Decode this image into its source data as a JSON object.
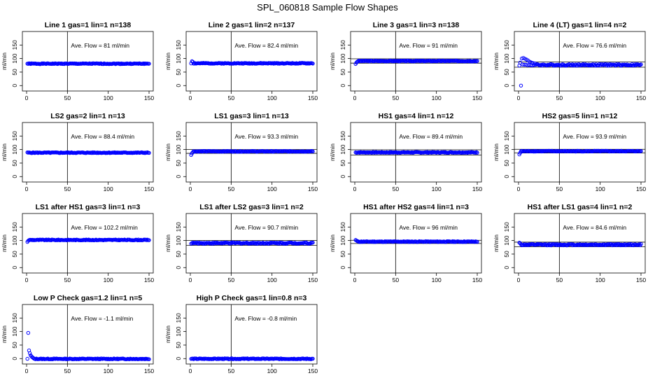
{
  "figure": {
    "title": "SPL_060818  Sample Flow Shapes",
    "series_color": "#0000ff"
  },
  "chart_data": [
    {
      "type": "scatter",
      "title": "Line 1 gas=1 lin=1 n=138",
      "ylabel": "ml/min",
      "xlim": [
        0,
        150
      ],
      "ylim": [
        -20,
        200
      ],
      "xticks": [
        0,
        50,
        100,
        150
      ],
      "yticks": [
        0,
        50,
        100,
        150
      ],
      "vline_x": 50,
      "annotation": "Ave. Flow =  81  ml/min",
      "mean": 81,
      "band": [],
      "startup": [],
      "noise": 1.5,
      "seed": 1
    },
    {
      "type": "scatter",
      "title": "Line 2 gas=1 lin=2 n=137",
      "ylabel": "ml/min",
      "xlim": [
        0,
        150
      ],
      "ylim": [
        -20,
        200
      ],
      "xticks": [
        0,
        50,
        100,
        150
      ],
      "yticks": [
        0,
        50,
        100,
        150
      ],
      "vline_x": 50,
      "annotation": "Ave. Flow =  82.4  ml/min",
      "mean": 82.4,
      "band": [],
      "startup": [
        [
          2,
          90
        ],
        [
          3,
          88
        ]
      ],
      "noise": 1.5,
      "seed": 2
    },
    {
      "type": "scatter",
      "title": "Line 3 gas=1 lin=3 n=138",
      "ylabel": "ml/min",
      "xlim": [
        0,
        150
      ],
      "ylim": [
        -20,
        200
      ],
      "xticks": [
        0,
        50,
        100,
        150
      ],
      "yticks": [
        0,
        50,
        100,
        150
      ],
      "vline_x": 50,
      "annotation": "Ave. Flow =  91  ml/min",
      "mean": 91,
      "band": [
        83,
        99
      ],
      "startup": [
        [
          1,
          80
        ],
        [
          2,
          85
        ],
        [
          3,
          88
        ]
      ],
      "noise": 1.5,
      "seed": 3
    },
    {
      "type": "scatter",
      "title": "Line 4 (LT) gas=1 lin=4 n=2",
      "ylabel": "ml/min",
      "xlim": [
        0,
        150
      ],
      "ylim": [
        -20,
        200
      ],
      "xticks": [
        0,
        50,
        100,
        150
      ],
      "yticks": [
        0,
        50,
        100,
        150
      ],
      "vline_x": 50,
      "annotation": "Ave. Flow =  76.6  ml/min",
      "mean": 76.6,
      "band": [
        68,
        87
      ],
      "startup": [
        [
          3,
          0
        ],
        [
          2,
          85
        ],
        [
          4,
          100
        ],
        [
          6,
          102
        ],
        [
          8,
          99
        ],
        [
          10,
          96
        ],
        [
          12,
          92
        ],
        [
          14,
          88
        ],
        [
          16,
          85
        ],
        [
          18,
          83
        ],
        [
          20,
          82
        ]
      ],
      "noise": 3,
      "seed": 4
    },
    {
      "type": "scatter",
      "title": "LS2 gas=2 lin=1 n=13",
      "ylabel": "ml/min",
      "xlim": [
        0,
        150
      ],
      "ylim": [
        -20,
        200
      ],
      "xticks": [
        0,
        50,
        100,
        150
      ],
      "yticks": [
        0,
        50,
        100,
        150
      ],
      "vline_x": 50,
      "annotation": "Ave. Flow =  88.4  ml/min",
      "mean": 88.4,
      "band": [],
      "startup": [],
      "noise": 1.5,
      "seed": 5
    },
    {
      "type": "scatter",
      "title": "LS1 gas=3 lin=1 n=13",
      "ylabel": "ml/min",
      "xlim": [
        0,
        150
      ],
      "ylim": [
        -20,
        200
      ],
      "xticks": [
        0,
        50,
        100,
        150
      ],
      "yticks": [
        0,
        50,
        100,
        150
      ],
      "vline_x": 50,
      "annotation": "Ave. Flow =  93.3  ml/min",
      "mean": 93.3,
      "band": [
        86,
        100
      ],
      "startup": [
        [
          1,
          80
        ],
        [
          2,
          86
        ],
        [
          3,
          90
        ]
      ],
      "noise": 1.5,
      "seed": 6
    },
    {
      "type": "scatter",
      "title": "HS1 gas=4 lin=1 n=12",
      "ylabel": "ml/min",
      "xlim": [
        0,
        150
      ],
      "ylim": [
        -20,
        200
      ],
      "xticks": [
        0,
        50,
        100,
        150
      ],
      "yticks": [
        0,
        50,
        100,
        150
      ],
      "vline_x": 50,
      "annotation": "Ave. Flow =  89.4  ml/min",
      "mean": 89.4,
      "band": [
        80,
        99
      ],
      "startup": [],
      "noise": 1.5,
      "seed": 7
    },
    {
      "type": "scatter",
      "title": "HS2 gas=5 lin=1 n=12",
      "ylabel": "ml/min",
      "xlim": [
        0,
        150
      ],
      "ylim": [
        -20,
        200
      ],
      "xticks": [
        0,
        50,
        100,
        150
      ],
      "yticks": [
        0,
        50,
        100,
        150
      ],
      "vline_x": 50,
      "annotation": "Ave. Flow =  93.9  ml/min",
      "mean": 93.9,
      "band": [
        87,
        101
      ],
      "startup": [
        [
          1,
          82
        ],
        [
          2,
          88
        ]
      ],
      "noise": 1.5,
      "seed": 8
    },
    {
      "type": "scatter",
      "title": "LS1 after HS1 gas=3 lin=1 n=3",
      "ylabel": "ml/min",
      "xlim": [
        0,
        150
      ],
      "ylim": [
        -20,
        200
      ],
      "xticks": [
        0,
        50,
        100,
        150
      ],
      "yticks": [
        0,
        50,
        100,
        150
      ],
      "vline_x": 50,
      "annotation": "Ave. Flow =  102.2  ml/min",
      "mean": 102.2,
      "band": [],
      "startup": [
        [
          1,
          95
        ],
        [
          2,
          99
        ]
      ],
      "noise": 1.5,
      "seed": 9
    },
    {
      "type": "scatter",
      "title": "LS1 after LS2 gas=3 lin=1 n=2",
      "ylabel": "ml/min",
      "xlim": [
        0,
        150
      ],
      "ylim": [
        -20,
        200
      ],
      "xticks": [
        0,
        50,
        100,
        150
      ],
      "yticks": [
        0,
        50,
        100,
        150
      ],
      "vline_x": 50,
      "annotation": "Ave. Flow =  90.7  ml/min",
      "mean": 90.7,
      "band": [
        82,
        100
      ],
      "startup": [],
      "noise": 2.5,
      "seed": 10
    },
    {
      "type": "scatter",
      "title": "HS1 after HS2 gas=4 lin=1 n=3",
      "ylabel": "ml/min",
      "xlim": [
        0,
        150
      ],
      "ylim": [
        -20,
        200
      ],
      "xticks": [
        0,
        50,
        100,
        150
      ],
      "yticks": [
        0,
        50,
        100,
        150
      ],
      "vline_x": 50,
      "annotation": "Ave. Flow =  96  ml/min",
      "mean": 96,
      "band": [
        89,
        101
      ],
      "startup": [
        [
          1,
          102
        ],
        [
          2,
          100
        ],
        [
          3,
          98
        ]
      ],
      "noise": 1.5,
      "seed": 11
    },
    {
      "type": "scatter",
      "title": "HS1 after LS1 gas=4 lin=1 n=2",
      "ylabel": "ml/min",
      "xlim": [
        0,
        150
      ],
      "ylim": [
        -20,
        200
      ],
      "xticks": [
        0,
        50,
        100,
        150
      ],
      "yticks": [
        0,
        50,
        100,
        150
      ],
      "vline_x": 50,
      "annotation": "Ave. Flow =  84.6  ml/min",
      "mean": 84.6,
      "band": [
        77,
        94
      ],
      "startup": [
        [
          1,
          92
        ],
        [
          2,
          90
        ]
      ],
      "noise": 2.5,
      "seed": 12
    },
    {
      "type": "scatter",
      "title": "Low P Check gas=1.2 lin=1 n=5",
      "ylabel": "ml/min",
      "xlim": [
        0,
        150
      ],
      "ylim": [
        -20,
        200
      ],
      "xticks": [
        0,
        50,
        100,
        150
      ],
      "yticks": [
        0,
        50,
        100,
        150
      ],
      "vline_x": 50,
      "annotation": "Ave. Flow =  -1.1  ml/min",
      "mean": -1.1,
      "band": [],
      "startup": [
        [
          2,
          95
        ],
        [
          3,
          30
        ],
        [
          4,
          20
        ],
        [
          5,
          12
        ],
        [
          6,
          8
        ],
        [
          7,
          5
        ],
        [
          8,
          3
        ]
      ],
      "noise": 1.5,
      "seed": 13
    },
    {
      "type": "scatter",
      "title": "High P Check gas=1 lin=0.8 n=3",
      "ylabel": "ml/min",
      "xlim": [
        0,
        150
      ],
      "ylim": [
        -20,
        200
      ],
      "xticks": [
        0,
        50,
        100,
        150
      ],
      "yticks": [
        0,
        50,
        100,
        150
      ],
      "vline_x": 50,
      "annotation": "Ave. Flow =  -0.8  ml/min",
      "mean": -0.8,
      "band": [],
      "startup": [],
      "noise": 1.5,
      "seed": 14
    }
  ]
}
